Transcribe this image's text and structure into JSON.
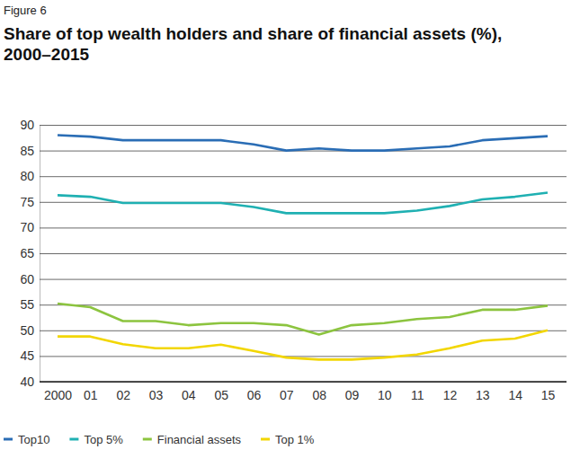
{
  "chart_data": {
    "type": "line",
    "subtitle": "Figure 6",
    "title": "Share of top wealth holders and share of financial assets (%), 2000–2015",
    "categories": [
      "2000",
      "01",
      "02",
      "03",
      "04",
      "05",
      "06",
      "07",
      "08",
      "09",
      "10",
      "11",
      "12",
      "13",
      "14",
      "15"
    ],
    "series": [
      {
        "name": "Top10",
        "color": "#2a6db5",
        "values": [
          88,
          87.7,
          87,
          87,
          87,
          87,
          86.2,
          85,
          85.4,
          85,
          85,
          85.4,
          85.8,
          87,
          87.4,
          87.8
        ]
      },
      {
        "name": "Top 5%",
        "color": "#1fb0b2",
        "values": [
          76.3,
          76,
          74.8,
          74.8,
          74.8,
          74.8,
          74,
          72.8,
          72.8,
          72.8,
          72.8,
          73.3,
          74.2,
          75.5,
          76,
          76.8
        ]
      },
      {
        "name": "Financial assets",
        "color": "#8cc43f",
        "values": [
          55.2,
          54.5,
          51.8,
          51.8,
          51,
          51.4,
          51.4,
          51,
          49.2,
          51,
          51.4,
          52.2,
          52.6,
          54,
          54,
          54.8
        ]
      },
      {
        "name": "Top 1%",
        "color": "#f2d600",
        "values": [
          48.8,
          48.8,
          47.3,
          46.5,
          46.5,
          47.2,
          46,
          44.7,
          44.3,
          44.3,
          44.7,
          45.3,
          46.5,
          48,
          48.4,
          50
        ]
      }
    ],
    "ylim": [
      40,
      90
    ],
    "yticks": [
      40,
      45,
      50,
      55,
      60,
      65,
      70,
      75,
      80,
      85,
      90
    ],
    "grid": true,
    "legend": "bottom"
  }
}
